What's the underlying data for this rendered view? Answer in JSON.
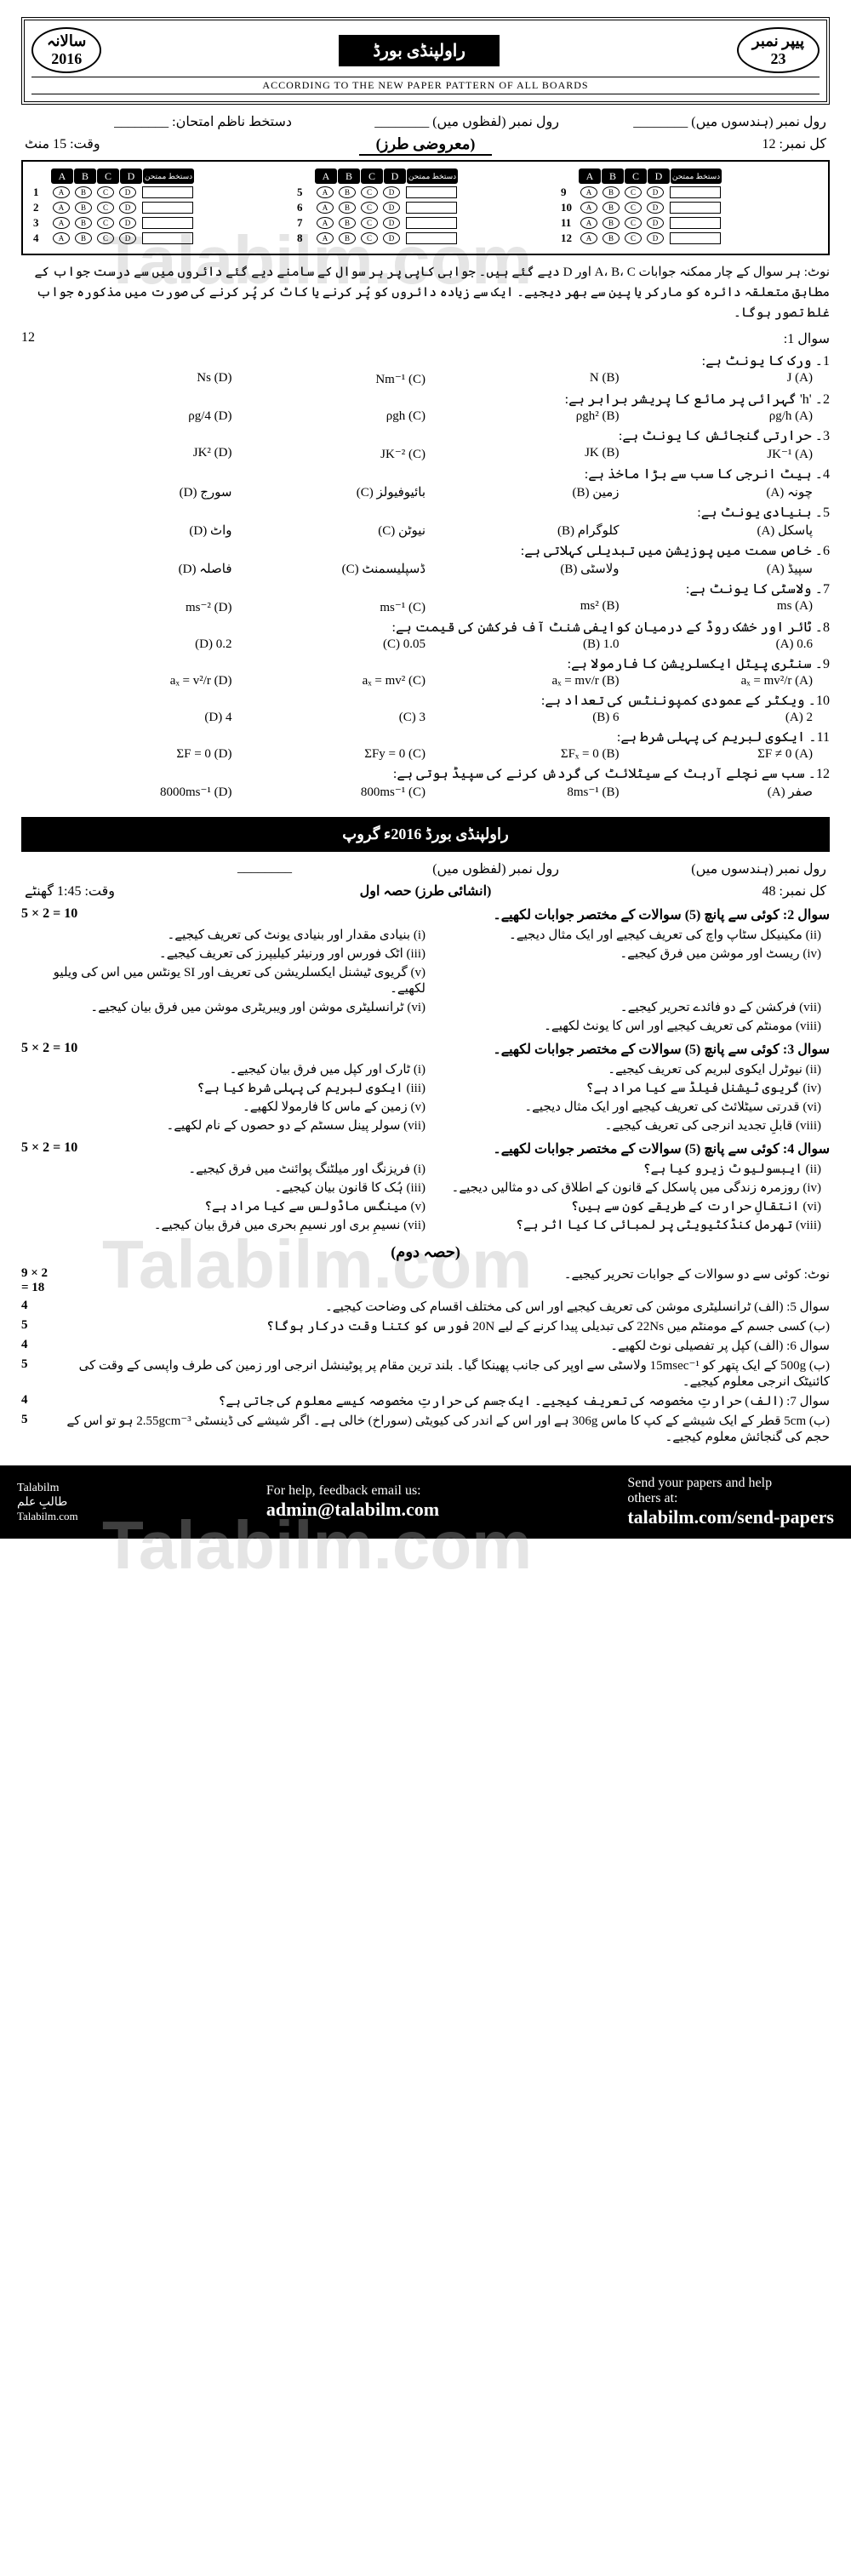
{
  "watermark": "Talabilm.com",
  "header": {
    "year_label": "سالانہ",
    "year": "2016",
    "board_title": "راولپنڈی بورڈ",
    "paper_label": "پیپر نمبر",
    "paper_no": "23",
    "pattern_note": "ACCORDING TO THE NEW PAPER PATTERN OF ALL BOARDS"
  },
  "info": {
    "total_label": "کل نمبر:",
    "total_marks": "12",
    "roll_words": "رول نمبر (لفظوں میں)",
    "roll_num": "رول نمبر (ہندسوں میں)",
    "exam_sign": "دستخط ناظم امتحان:",
    "time_label": "وقت:",
    "time_val": "15 منٹ",
    "type_label": "(معروضی طرز)"
  },
  "bubble": {
    "cols": [
      "A",
      "B",
      "C",
      "D"
    ],
    "sign": "دستخط ممتحن",
    "groups": [
      [
        1,
        2,
        3,
        4
      ],
      [
        5,
        6,
        7,
        8
      ],
      [
        9,
        10,
        11,
        12
      ]
    ]
  },
  "instruction": "نوٹ: ہر سوال کے چار ممکنہ جوابات A، B، C اور D دیے گئے ہیں۔ جوابی کاپی پر ہر سوال کے سامنے دیے گئے دائروں میں سے درست جواب کے مطابق متعلقہ دائرہ کو مارکر یا پین سے بھر دیجیے۔ ایک سے زیادہ دائروں کو پُر کرنے یا کاٹ کر پُر کرنے کی صورت میں مذکورہ جواب غلط تصور ہوگا۔",
  "mcq_header": {
    "q": "سوال 1:",
    "marks": "12"
  },
  "mcqs": [
    {
      "q": "1۔ ورک کا یونٹ ہے:",
      "a": "J (A)",
      "b": "N (B)",
      "c": "Nm⁻¹ (C)",
      "d": "Ns (D)"
    },
    {
      "q": "2۔ 'h' گہرائی پر مائع کا پریشر برابر ہے:",
      "a": "ρg/h (A)",
      "b": "ρgh² (B)",
      "c": "ρgh (C)",
      "d": "ρg/4 (D)"
    },
    {
      "q": "3۔ حرارتی گنجائش کا یونٹ ہے:",
      "a": "JK⁻¹ (A)",
      "b": "JK (B)",
      "c": "JK⁻² (C)",
      "d": "JK² (D)"
    },
    {
      "q": "4۔ ہیٹ انرجی کا سب سے بڑا ماخذ ہے:",
      "a": "چونہ (A)",
      "b": "زمین (B)",
      "c": "بائیوفیولز (C)",
      "d": "سورج (D)"
    },
    {
      "q": "5۔ بنیادی یونٹ ہے:",
      "a": "پاسکل (A)",
      "b": "کلوگرام (B)",
      "c": "نیوٹن (C)",
      "d": "واٹ (D)"
    },
    {
      "q": "6۔ خاص سمت میں پوزیشن میں تبدیلی کہلاتی ہے:",
      "a": "سپیڈ (A)",
      "b": "ولاسٹی (B)",
      "c": "ڈسپلیسمنٹ (C)",
      "d": "فاصلہ (D)"
    },
    {
      "q": "7۔ ولاسٹی کا یونٹ ہے:",
      "a": "ms (A)",
      "b": "ms² (B)",
      "c": "ms⁻¹ (C)",
      "d": "ms⁻² (D)"
    },
    {
      "q": "8۔ ٹائر اور خشک روڈ کے درمیان کوایفی شنٹ آف فرکشن کی قیمت ہے:",
      "a": "0.6 (A)",
      "b": "1.0 (B)",
      "c": "0.05 (C)",
      "d": "0.2 (D)"
    },
    {
      "q": "9۔ سنٹری پیٹل ایکسلریشن کا فارمولا ہے:",
      "a": "aₓ = mv²/r (A)",
      "b": "aₓ = mv/r (B)",
      "c": "aₓ = mv² (C)",
      "d": "aₓ = v²/r (D)"
    },
    {
      "q": "10۔ ویکٹر کے عمودی کمپوننٹس کی تعداد ہے:",
      "a": "2 (A)",
      "b": "6 (B)",
      "c": "3 (C)",
      "d": "4 (D)"
    },
    {
      "q": "11۔ ایکوی لبریم کی پہلی شرط ہے:",
      "a": "ΣF ≠ 0 (A)",
      "b": "ΣFₓ = 0 (B)",
      "c": "ΣFy = 0 (C)",
      "d": "ΣF = 0 (D)"
    },
    {
      "q": "12۔ سب سے نچلے آربٹ کے سیٹلائٹ کی گردش کرنے کی سپیڈ ہوتی ہے:",
      "a": "صفر (A)",
      "b": "8ms⁻¹ (B)",
      "c": "800ms⁻¹ (C)",
      "d": "8000ms⁻¹ (D)"
    }
  ],
  "subjective_banner": "راولپنڈی بورڈ 2016ء گروپ",
  "subj_info": {
    "total": "کل نمبر: 48",
    "roll_w": "رول نمبر (لفظوں میں)",
    "roll_n": "رول نمبر (ہندسوں میں)",
    "type": "(انشائی طرز) حصہ اول",
    "time": "وقت: 1:45 گھنٹے"
  },
  "sq2": {
    "header": "سوال 2: کوئی سے پانچ (5) سوالات کے مختصر جوابات لکھیے۔",
    "marks": "5 × 2 = 10",
    "items": [
      [
        "(i) بنیادی مقدار اور بنیادی یونٹ کی تعریف کیجیے۔",
        "(ii) مکینیکل سٹاپ واچ کی تعریف کیجیے اور ایک مثال دیجیے۔"
      ],
      [
        "(iii) اٹک فورس اور ورنیئر کیلیپرز کی تعریف کیجیے۔",
        "(iv) ریسٹ اور موشن میں فرق کیجیے۔"
      ],
      [
        "(v) گریوی ٹیشنل ایکسلریشن کی تعریف اور SI یونٹس میں اس کی ویلیو لکھیے۔",
        ""
      ],
      [
        "(vi) ٹرانسلیٹری موشن اور ویبریٹری موشن میں فرق بیان کیجیے۔",
        "(vii) فرکشن کے دو فائدے تحریر کیجیے۔"
      ],
      [
        "",
        "(viii) مومنٹم کی تعریف کیجیے اور اس کا یونٹ لکھیے۔"
      ]
    ]
  },
  "sq3": {
    "header": "سوال 3: کوئی سے پانچ (5) سوالات کے مختصر جوابات لکھیے۔",
    "marks": "5 × 2 = 10",
    "items": [
      [
        "(i) ٹارک اور کپل میں فرق بیان کیجیے۔",
        "(ii) نیوٹرل ایکوی لبریم کی تعریف کیجیے۔"
      ],
      [
        "(iii) ایکوی لبریم کی پہلی شرط کیا ہے؟",
        "(iv) گریوی ٹیشنل فیلڈ سے کیا مراد ہے؟"
      ],
      [
        "(v) زمین کے ماس کا فارمولا لکھیے۔",
        "(vi) قدرتی سیٹلائٹ کی تعریف کیجیے اور ایک مثال دیجیے۔"
      ],
      [
        "(vii) سولر پینل سسٹم کے دو حصوں کے نام لکھیے۔",
        "(viii) قابلِ تجدید انرجی کی تعریف کیجیے۔"
      ]
    ]
  },
  "sq4": {
    "header": "سوال 4: کوئی سے پانچ (5) سوالات کے مختصر جوابات لکھیے۔",
    "marks": "5 × 2 = 10",
    "items": [
      [
        "(i) فریزنگ اور میلٹنگ پوائنٹ میں فرق کیجیے۔",
        "(ii) ایبسولیوٹ زیرو کیا ہے؟"
      ],
      [
        "(iii) ہُک کا قانون بیان کیجیے۔",
        "(iv) روزمرہ زندگی میں پاسکل کے قانون کے اطلاق کی دو مثالیں دیجیے۔"
      ],
      [
        "(v) مینگس ماڈولس سے کیا مراد ہے؟",
        "(vi) انتقالِ حرارت کے طریقے کون سے ہیں؟"
      ],
      [
        "(vii) نسیمِ بری اور نسیمِ بحری میں فرق بیان کیجیے۔",
        "(viii) تھرمل کنڈکٹیویٹی پر لمبائی کا کیا اثر ہے؟"
      ]
    ]
  },
  "part2_title": "(حصہ دوم)",
  "part2_note": {
    "txt": "نوٹ: کوئی سے دو سوالات کے جوابات تحریر کیجیے۔",
    "marks": "9 × 2 = 18"
  },
  "long": [
    {
      "txt": "سوال 5: (الف) ٹرانسلیٹری موشن کی تعریف کیجیے اور اس کی مختلف اقسام کی وضاحت کیجیے۔",
      "marks": "4"
    },
    {
      "txt": "(ب) کسی جسم کے مومنٹم میں 22Ns کی تبدیلی پیدا کرنے کے لیے 20N فورس کو کتنا وقت درکار ہوگا؟",
      "marks": "5"
    },
    {
      "txt": "سوال 6: (الف) کپل پر تفصیلی نوٹ لکھیے۔",
      "marks": "4"
    },
    {
      "txt": "(ب) 500g کے ایک پتھر کو 15msec⁻¹ ولاسٹی سے اوپر کی جانب پھینکا گیا۔ بلند ترین مقام پر پوٹینشل انرجی اور زمین کی طرف واپسی کے وقت کی کائنیٹک انرجی معلوم کیجیے۔",
      "marks": "5"
    },
    {
      "txt": "سوال 7: (الف) حرارتِ مخصوصہ کی تعریف کیجیے۔ ایک جسم کی حرارتِ مخصوصہ کیسے معلوم کی جاتی ہے؟",
      "marks": "4"
    },
    {
      "txt": "(ب) 5cm قطر کے ایک شیشے کے کپ کا ماس 306g ہے اور اس کے اندر کی کیویٹی (سوراخ) خالی ہے۔ اگر شیشے کی ڈینسٹی 2.55gcm⁻³ ہو تو اس کے حجم کی گنجائش معلوم کیجیے۔",
      "marks": "5"
    }
  ],
  "footer": {
    "logo1": "Talabilm",
    "logo2": "طالبِ علم",
    "logo3": "Talabilm.com",
    "help": "For help, feedback email us:",
    "email": "admin@talabilm.com",
    "send1": "Send your papers and help",
    "send2": "others at:",
    "send3": "talabilm.com/send-papers"
  }
}
